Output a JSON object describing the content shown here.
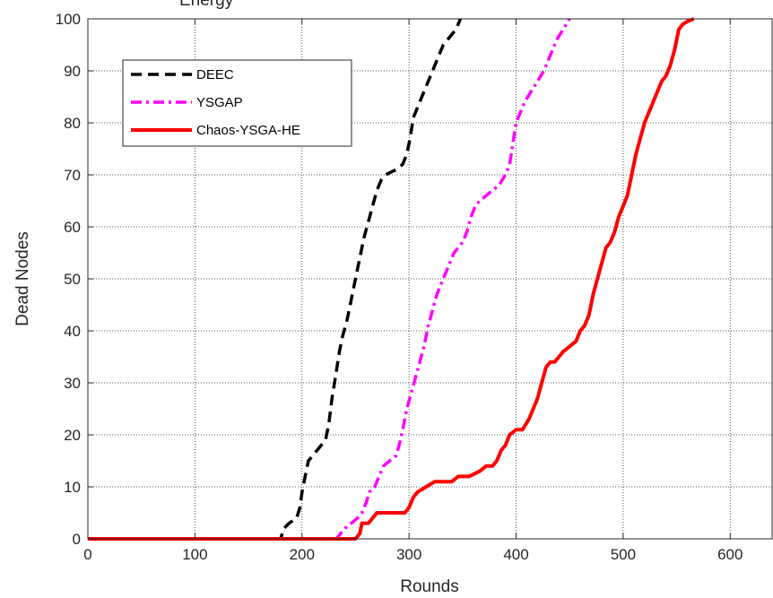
{
  "chart_data": {
    "type": "line",
    "title": "... Energy ... ... ... Rounds  ... ... ... Range",
    "title_visible_fragment": "Energy",
    "xlabel": "Rounds",
    "ylabel": "Dead Nodes",
    "xlim": [
      0,
      640
    ],
    "ylim": [
      0,
      100
    ],
    "xticks": [
      0,
      100,
      200,
      300,
      400,
      500,
      600
    ],
    "yticks": [
      0,
      10,
      20,
      30,
      40,
      50,
      60,
      70,
      80,
      90,
      100
    ],
    "grid": true,
    "legend_position": "top-left",
    "series": [
      {
        "name": "DEEC",
        "color": "#000000",
        "style": "dashed",
        "points": [
          [
            0,
            0
          ],
          [
            180,
            0
          ],
          [
            183,
            2
          ],
          [
            188,
            3
          ],
          [
            195,
            4
          ],
          [
            198,
            6
          ],
          [
            200,
            9
          ],
          [
            203,
            12
          ],
          [
            206,
            15
          ],
          [
            210,
            16
          ],
          [
            214,
            17
          ],
          [
            218,
            18
          ],
          [
            222,
            19
          ],
          [
            225,
            22
          ],
          [
            228,
            27
          ],
          [
            232,
            32
          ],
          [
            235,
            36
          ],
          [
            238,
            39
          ],
          [
            242,
            42
          ],
          [
            246,
            46
          ],
          [
            250,
            50
          ],
          [
            254,
            54
          ],
          [
            258,
            58
          ],
          [
            262,
            61
          ],
          [
            266,
            64
          ],
          [
            270,
            67
          ],
          [
            274,
            69
          ],
          [
            278,
            70
          ],
          [
            283,
            70.5
          ],
          [
            288,
            71
          ],
          [
            294,
            72
          ],
          [
            298,
            74
          ],
          [
            301,
            77
          ],
          [
            304,
            81
          ],
          [
            308,
            83
          ],
          [
            312,
            85
          ],
          [
            316,
            87
          ],
          [
            320,
            89
          ],
          [
            324,
            91
          ],
          [
            328,
            93
          ],
          [
            332,
            95
          ],
          [
            336,
            96
          ],
          [
            340,
            97
          ],
          [
            344,
            98
          ],
          [
            348,
            100
          ]
        ]
      },
      {
        "name": "YSGAP",
        "color": "#ff00ff",
        "style": "dashdot",
        "points": [
          [
            0,
            0
          ],
          [
            232,
            0
          ],
          [
            236,
            1
          ],
          [
            240,
            2
          ],
          [
            246,
            3
          ],
          [
            252,
            4
          ],
          [
            256,
            5
          ],
          [
            260,
            7
          ],
          [
            263,
            9
          ],
          [
            268,
            10
          ],
          [
            272,
            12
          ],
          [
            276,
            14
          ],
          [
            282,
            15
          ],
          [
            288,
            16
          ],
          [
            292,
            19
          ],
          [
            295,
            22
          ],
          [
            298,
            25
          ],
          [
            302,
            28
          ],
          [
            306,
            31
          ],
          [
            310,
            34
          ],
          [
            314,
            37
          ],
          [
            318,
            41
          ],
          [
            322,
            44
          ],
          [
            326,
            47
          ],
          [
            330,
            49
          ],
          [
            334,
            51
          ],
          [
            338,
            53
          ],
          [
            342,
            55
          ],
          [
            346,
            56
          ],
          [
            350,
            57
          ],
          [
            354,
            59
          ],
          [
            358,
            62
          ],
          [
            362,
            64
          ],
          [
            366,
            65
          ],
          [
            372,
            66
          ],
          [
            378,
            67
          ],
          [
            384,
            68
          ],
          [
            390,
            70
          ],
          [
            394,
            72
          ],
          [
            397,
            76
          ],
          [
            400,
            80
          ],
          [
            404,
            82
          ],
          [
            408,
            84
          ],
          [
            414,
            86
          ],
          [
            420,
            88
          ],
          [
            426,
            90
          ],
          [
            430,
            92
          ],
          [
            434,
            94
          ],
          [
            438,
            96
          ],
          [
            444,
            98
          ],
          [
            450,
            100
          ]
        ]
      },
      {
        "name": "Chaos-YSGA-HE",
        "color": "#ff0000",
        "style": "solid",
        "points": [
          [
            0,
            0
          ],
          [
            250,
            0
          ],
          [
            254,
            1
          ],
          [
            256,
            3
          ],
          [
            262,
            3
          ],
          [
            266,
            4
          ],
          [
            270,
            5
          ],
          [
            280,
            5
          ],
          [
            288,
            5
          ],
          [
            296,
            5
          ],
          [
            300,
            6
          ],
          [
            304,
            8
          ],
          [
            308,
            9
          ],
          [
            316,
            10
          ],
          [
            324,
            11
          ],
          [
            332,
            11
          ],
          [
            340,
            11
          ],
          [
            346,
            12
          ],
          [
            356,
            12
          ],
          [
            366,
            13
          ],
          [
            372,
            14
          ],
          [
            378,
            14
          ],
          [
            382,
            15
          ],
          [
            386,
            17
          ],
          [
            390,
            18
          ],
          [
            394,
            20
          ],
          [
            400,
            21
          ],
          [
            406,
            21
          ],
          [
            412,
            23
          ],
          [
            416,
            25
          ],
          [
            420,
            27
          ],
          [
            424,
            30
          ],
          [
            428,
            33
          ],
          [
            432,
            34
          ],
          [
            436,
            34
          ],
          [
            440,
            35
          ],
          [
            444,
            36
          ],
          [
            450,
            37
          ],
          [
            456,
            38
          ],
          [
            460,
            40
          ],
          [
            464,
            41
          ],
          [
            468,
            43
          ],
          [
            472,
            47
          ],
          [
            476,
            50
          ],
          [
            480,
            53
          ],
          [
            484,
            56
          ],
          [
            488,
            57
          ],
          [
            492,
            59
          ],
          [
            496,
            62
          ],
          [
            500,
            64
          ],
          [
            504,
            66
          ],
          [
            508,
            70
          ],
          [
            512,
            74
          ],
          [
            516,
            77
          ],
          [
            520,
            80
          ],
          [
            524,
            82
          ],
          [
            528,
            84
          ],
          [
            532,
            86
          ],
          [
            536,
            88
          ],
          [
            540,
            89
          ],
          [
            544,
            91
          ],
          [
            548,
            94
          ],
          [
            552,
            98
          ],
          [
            556,
            99
          ],
          [
            560,
            99.5
          ],
          [
            566,
            100
          ]
        ]
      }
    ]
  }
}
